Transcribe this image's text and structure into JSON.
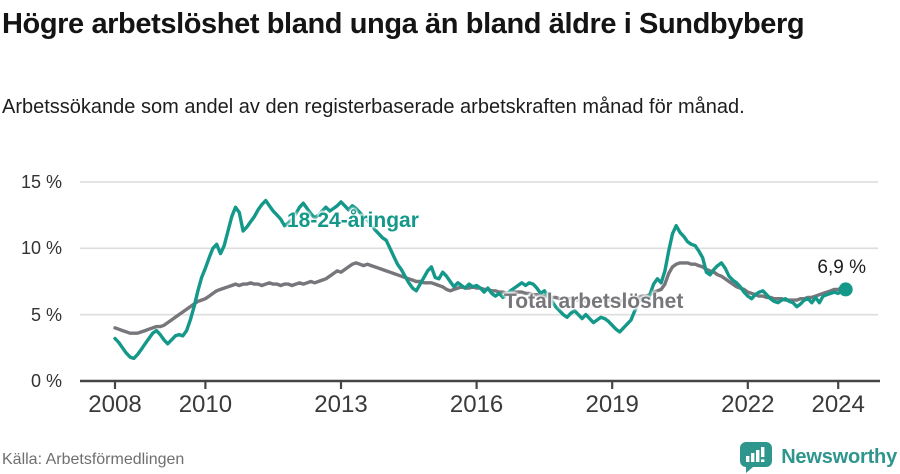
{
  "header": {
    "title": "Högre arbetslöshet bland unga än bland äldre i Sundbyberg",
    "subtitle": "Arbetssökande som andel av den registerbaserade arbetskraften månad för månad."
  },
  "chart_data": {
    "type": "line",
    "title": "Högre arbetslöshet bland unga än bland äldre i Sundbyberg",
    "x_unit": "month",
    "x_start_year": 2008,
    "x_start": "2008-01",
    "x_end": "2024-03",
    "x_step": "1 month",
    "ylim": [
      0,
      16.5
    ],
    "grid": "horizontal",
    "legend_position": "inline-labels",
    "yticks": [
      {
        "value": 0,
        "label": "0 %"
      },
      {
        "value": 5,
        "label": "5 %"
      },
      {
        "value": 10,
        "label": "10 %"
      },
      {
        "value": 15,
        "label": "15 %"
      }
    ],
    "xticks": [
      {
        "value": 2008,
        "label": "2008"
      },
      {
        "value": 2010,
        "label": "2010"
      },
      {
        "value": 2013,
        "label": "2013"
      },
      {
        "value": 2016,
        "label": "2016"
      },
      {
        "value": 2019,
        "label": "2019"
      },
      {
        "value": 2022,
        "label": "2022"
      },
      {
        "value": 2024,
        "label": "2024"
      }
    ],
    "series": [
      {
        "name": "Total arbetslöshet",
        "color": "#76767b",
        "values": [
          4.0,
          3.9,
          3.8,
          3.7,
          3.6,
          3.6,
          3.6,
          3.7,
          3.8,
          3.9,
          4.0,
          4.1,
          4.1,
          4.2,
          4.4,
          4.6,
          4.8,
          5.0,
          5.2,
          5.4,
          5.6,
          5.8,
          6.0,
          6.1,
          6.2,
          6.4,
          6.6,
          6.8,
          6.9,
          7.0,
          7.1,
          7.2,
          7.3,
          7.2,
          7.3,
          7.3,
          7.4,
          7.3,
          7.3,
          7.2,
          7.3,
          7.4,
          7.3,
          7.3,
          7.2,
          7.3,
          7.3,
          7.2,
          7.3,
          7.4,
          7.3,
          7.4,
          7.5,
          7.4,
          7.5,
          7.6,
          7.7,
          7.9,
          8.1,
          8.3,
          8.2,
          8.4,
          8.6,
          8.8,
          8.9,
          8.8,
          8.7,
          8.8,
          8.7,
          8.6,
          8.5,
          8.4,
          8.3,
          8.2,
          8.1,
          8.0,
          7.9,
          7.8,
          7.7,
          7.6,
          7.5,
          7.5,
          7.4,
          7.4,
          7.4,
          7.3,
          7.2,
          7.1,
          6.9,
          6.8,
          6.9,
          7.0,
          7.1,
          7.0,
          7.0,
          7.1,
          7.0,
          7.0,
          6.9,
          6.9,
          6.8,
          6.8,
          6.7,
          6.7,
          6.6,
          6.7,
          6.7,
          6.7,
          6.7,
          6.6,
          6.6,
          6.5,
          6.5,
          6.4,
          6.4,
          6.3,
          6.3,
          6.3,
          6.2,
          6.2,
          6.2,
          6.2,
          6.1,
          6.1,
          6.1,
          6.0,
          6.1,
          6.0,
          6.0,
          6.1,
          6.1,
          6.1,
          6.1,
          6.0,
          6.0,
          6.1,
          6.1,
          6.2,
          6.3,
          6.3,
          6.4,
          6.4,
          6.5,
          6.7,
          6.8,
          6.9,
          7.3,
          8.1,
          8.6,
          8.8,
          8.9,
          8.9,
          8.9,
          8.8,
          8.8,
          8.7,
          8.6,
          8.4,
          8.3,
          8.2,
          8.0,
          7.9,
          7.7,
          7.5,
          7.3,
          7.1,
          7.0,
          6.9,
          6.7,
          6.6,
          6.5,
          6.4,
          6.4,
          6.3,
          6.3,
          6.2,
          6.2,
          6.2,
          6.1,
          6.1,
          6.1,
          6.1,
          6.2,
          6.2,
          6.3,
          6.3,
          6.4,
          6.5,
          6.6,
          6.7,
          6.8,
          6.9,
          6.9,
          7.0,
          6.9
        ]
      },
      {
        "name": "18-24-åringar",
        "color": "#14988a",
        "end_label": "6,9 %",
        "end_marker": true,
        "values": [
          3.2,
          2.9,
          2.5,
          2.1,
          1.8,
          1.7,
          2.0,
          2.4,
          2.8,
          3.2,
          3.6,
          3.8,
          3.5,
          3.1,
          2.8,
          3.1,
          3.4,
          3.5,
          3.4,
          3.8,
          4.6,
          5.6,
          6.8,
          7.8,
          8.5,
          9.3,
          10.0,
          10.3,
          9.6,
          10.2,
          11.3,
          12.4,
          13.1,
          12.7,
          11.3,
          11.6,
          12.0,
          12.4,
          12.9,
          13.3,
          13.6,
          13.2,
          12.8,
          12.5,
          12.2,
          11.7,
          11.9,
          12.2,
          12.6,
          13.1,
          13.4,
          13.0,
          12.6,
          12.3,
          12.5,
          12.8,
          13.1,
          12.8,
          13.0,
          13.2,
          13.5,
          13.2,
          12.9,
          13.2,
          13.0,
          12.7,
          12.4,
          12.1,
          11.8,
          11.4,
          11.1,
          10.8,
          10.6,
          10.0,
          9.4,
          8.8,
          8.4,
          7.9,
          7.4,
          7.0,
          6.8,
          7.3,
          7.8,
          8.3,
          8.6,
          7.8,
          7.7,
          8.2,
          7.9,
          7.5,
          7.1,
          7.4,
          7.2,
          7.0,
          7.3,
          7.1,
          7.2,
          7.0,
          6.7,
          7.0,
          6.6,
          6.4,
          6.6,
          6.3,
          6.5,
          6.8,
          7.0,
          7.2,
          7.4,
          7.2,
          7.4,
          7.3,
          7.0,
          6.6,
          6.8,
          6.4,
          6.0,
          5.6,
          5.3,
          5.0,
          4.8,
          5.1,
          5.3,
          5.0,
          4.7,
          5.0,
          4.7,
          4.4,
          4.6,
          4.8,
          4.7,
          4.5,
          4.2,
          3.9,
          3.7,
          4.0,
          4.3,
          4.6,
          5.3,
          6.0,
          6.2,
          5.9,
          6.5,
          7.3,
          7.7,
          7.4,
          8.3,
          9.8,
          11.1,
          11.7,
          11.2,
          10.9,
          10.5,
          10.3,
          10.2,
          9.8,
          9.3,
          8.2,
          8.0,
          8.4,
          8.7,
          8.9,
          8.5,
          7.9,
          7.6,
          7.4,
          7.1,
          6.7,
          6.4,
          6.2,
          6.5,
          6.7,
          6.8,
          6.5,
          6.2,
          6.0,
          5.9,
          6.1,
          6.2,
          6.0,
          5.9,
          5.6,
          5.8,
          6.1,
          6.2,
          5.9,
          6.3,
          5.9,
          6.4,
          6.5,
          6.6,
          6.7,
          6.6,
          6.8,
          6.9
        ]
      }
    ]
  },
  "style": {
    "grid_color": "#dedede",
    "axis_color": "#454545",
    "accent_teal": "#14988a",
    "line_gray": "#76767b"
  },
  "footer": {
    "source": "Källa: Arbetsförmedlingen",
    "brand": "Newsworthy"
  }
}
